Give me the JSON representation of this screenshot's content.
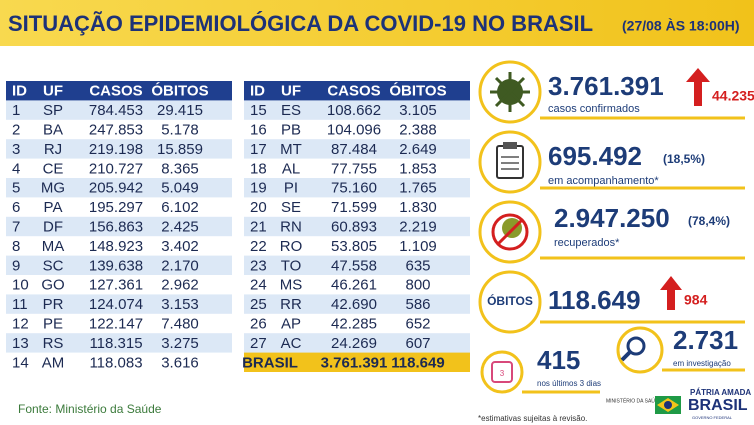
{
  "header": {
    "title": "SITUAÇÃO EPIDEMIOLÓGICA DA COVID-19 NO BRASIL",
    "date": "(27/08 ÀS 18:00H)"
  },
  "tables": [
    {
      "columns": [
        "ID",
        "UF",
        "CASOS",
        "ÓBITOS"
      ],
      "rows": [
        [
          "1",
          "SP",
          "784.453",
          "29.415"
        ],
        [
          "2",
          "BA",
          "247.853",
          "5.178"
        ],
        [
          "3",
          "RJ",
          "219.198",
          "15.859"
        ],
        [
          "4",
          "CE",
          "210.727",
          "8.365"
        ],
        [
          "5",
          "MG",
          "205.942",
          "5.049"
        ],
        [
          "6",
          "PA",
          "195.297",
          "6.102"
        ],
        [
          "7",
          "DF",
          "156.863",
          "2.425"
        ],
        [
          "8",
          "MA",
          "148.923",
          "3.402"
        ],
        [
          "9",
          "SC",
          "139.638",
          "2.170"
        ],
        [
          "10",
          "GO",
          "127.361",
          "2.962"
        ],
        [
          "11",
          "PR",
          "124.074",
          "3.153"
        ],
        [
          "12",
          "PE",
          "122.147",
          "7.480"
        ],
        [
          "13",
          "RS",
          "118.315",
          "3.275"
        ],
        [
          "14",
          "AM",
          "118.083",
          "3.616"
        ]
      ]
    },
    {
      "columns": [
        "ID",
        "UF",
        "CASOS",
        "ÓBITOS"
      ],
      "rows": [
        [
          "15",
          "ES",
          "108.662",
          "3.105"
        ],
        [
          "16",
          "PB",
          "104.096",
          "2.388"
        ],
        [
          "17",
          "MT",
          "87.484",
          "2.649"
        ],
        [
          "18",
          "AL",
          "77.755",
          "1.853"
        ],
        [
          "19",
          "PI",
          "75.160",
          "1.765"
        ],
        [
          "20",
          "SE",
          "71.599",
          "1.830"
        ],
        [
          "21",
          "RN",
          "60.893",
          "2.219"
        ],
        [
          "22",
          "RO",
          "53.805",
          "1.109"
        ],
        [
          "23",
          "TO",
          "47.558",
          "635"
        ],
        [
          "24",
          "MS",
          "46.261",
          "800"
        ],
        [
          "25",
          "RR",
          "42.690",
          "586"
        ],
        [
          "26",
          "AP",
          "42.285",
          "652"
        ],
        [
          "27",
          "AC",
          "24.269",
          "607"
        ]
      ],
      "total": [
        "BRASIL",
        "3.761.391",
        "118.649"
      ]
    }
  ],
  "panels": {
    "confirmed": {
      "value": "3.761.391",
      "label": "casos confirmados",
      "increase": "44.235"
    },
    "monitoring": {
      "value": "695.492",
      "percent": "(18,5%)",
      "label": "em acompanhamento*"
    },
    "recovered": {
      "value": "2.947.250",
      "percent": "(78,4%)",
      "label": "recuperados*"
    },
    "deaths": {
      "title": "ÓBITOS",
      "value": "118.649",
      "increase": "984"
    },
    "recent": {
      "value": "415",
      "label": "nos últimos 3 dias",
      "icon": "3"
    },
    "investigation": {
      "value": "2.731",
      "label": "em investigação"
    }
  },
  "footer": {
    "source": "Fonte: Ministério da Saúde",
    "note": "*estimativas sujeitas à revisão.",
    "ministry": "MINISTÉRIO DA SAÚDE",
    "motto": "PÁTRIA AMADA",
    "country": "BRASIL",
    "government": "GOVERNO FEDERAL"
  }
}
